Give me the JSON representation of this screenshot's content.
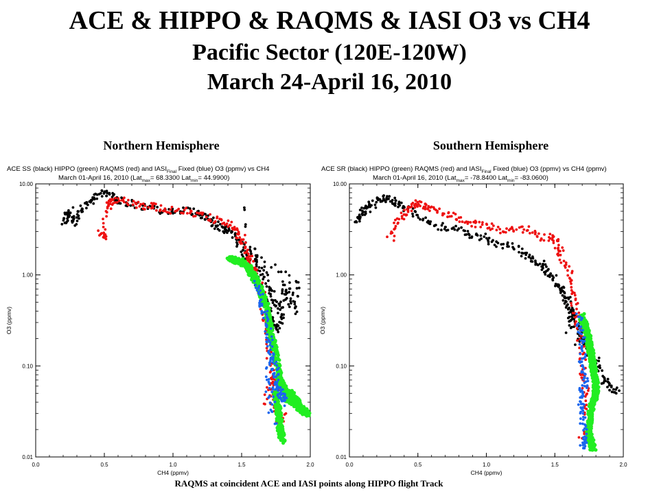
{
  "title": {
    "line1": "ACE & HIPPO & RAQMS & IASI O3 vs CH4",
    "line2": "Pacific Sector (120E-120W)",
    "line3": "March 24-April 16, 2010"
  },
  "footer": "RAQMS at coincident ACE and IASI points along HIPPO flight Track",
  "colors": {
    "ace": "#000000",
    "hippo": "#22ee22",
    "raqms": "#ee1111",
    "iasi": "#1a66ee"
  },
  "chart_data": [
    {
      "type": "scatter",
      "panel_label": "Northern Hemisphere",
      "header_line1_pre": "ACE SS (black) HIPPO (green) RAQMS (red) and IASI",
      "header_line1_sub": "Final",
      "header_line1_post": " Fixed (blue) O3 (ppmv) vs CH4",
      "header_line2_pre": "March 01-April 16, 2010 (Lat",
      "header_sub_max": "max",
      "lat_max_text": "= 68.3300 Lat",
      "header_sub_min": "min",
      "lat_min_text": "= 44.9900)",
      "xlabel": "CH4 (ppmv)",
      "ylabel": "O3 (ppmv)",
      "xlim": [
        0.0,
        2.0
      ],
      "ylim": [
        0.01,
        10.0
      ],
      "ylog": true,
      "xticks": [
        "0.0",
        "0.5",
        "1.0",
        "1.5",
        "2.0"
      ],
      "yticks": [
        "0.01",
        "0.10",
        "1.00",
        "10.00"
      ],
      "series": [
        {
          "name": "ACE SS",
          "color": "black",
          "x": [
            0.2,
            0.22,
            0.25,
            0.28,
            0.3,
            0.35,
            0.4,
            0.45,
            0.5,
            0.55,
            0.6,
            0.7,
            0.8,
            0.9,
            1.0,
            1.1,
            1.2,
            1.25,
            1.3,
            1.35,
            1.4,
            1.45,
            1.5,
            1.52,
            1.55,
            1.58,
            1.6,
            1.62,
            1.65,
            1.68,
            1.7,
            1.72,
            1.75,
            1.78,
            1.8,
            1.82,
            1.85,
            1.88,
            1.9,
            1.6,
            1.7,
            1.8,
            1.55,
            1.65,
            1.75,
            1.5
          ],
          "y": [
            3.8,
            4.3,
            5.1,
            3.6,
            4.6,
            5.6,
            6.6,
            7.6,
            8.1,
            7.1,
            6.6,
            6.1,
            5.6,
            5.1,
            5.1,
            5.1,
            4.6,
            4.3,
            3.6,
            3.3,
            3.1,
            2.6,
            2.1,
            1.6,
            1.3,
            1.1,
            0.9,
            0.8,
            0.6,
            0.5,
            0.4,
            0.3,
            0.25,
            0.3,
            0.5,
            0.8,
            0.6,
            0.4,
            0.9,
            1.6,
            0.7,
            0.35,
            2.1,
            1.2,
            0.45,
            5.6
          ]
        },
        {
          "name": "RAQMS",
          "color": "red",
          "x": [
            0.48,
            0.5,
            0.52,
            0.55,
            0.6,
            0.7,
            0.8,
            0.9,
            1.0,
            1.1,
            1.2,
            1.3,
            1.4,
            1.45,
            1.5,
            1.52,
            1.55,
            1.57,
            1.6,
            1.62,
            1.65,
            1.66,
            1.68,
            1.7,
            1.7,
            1.72,
            1.73,
            1.75,
            1.76,
            1.78,
            1.8,
            1.68,
            1.7
          ],
          "y": [
            3.1,
            2.6,
            5.6,
            6.1,
            6.6,
            6.1,
            5.6,
            5.6,
            5.1,
            5.1,
            4.6,
            4.1,
            3.6,
            3.1,
            2.6,
            2.1,
            1.6,
            1.3,
            1.1,
            0.8,
            0.6,
            0.4,
            0.3,
            0.2,
            0.15,
            0.1,
            0.07,
            0.05,
            0.035,
            0.025,
            0.03,
            0.04,
            0.06
          ]
        },
        {
          "name": "HIPPO",
          "color": "green",
          "x": [
            1.4,
            1.45,
            1.5,
            1.55,
            1.58,
            1.62,
            1.65,
            1.68,
            1.7,
            1.72,
            1.74,
            1.76,
            1.78,
            1.8,
            1.82,
            1.85,
            1.88,
            1.9,
            1.92,
            1.95,
            1.98,
            1.75,
            1.77,
            1.78,
            1.8
          ],
          "y": [
            1.5,
            1.45,
            1.4,
            1.2,
            1.0,
            0.8,
            0.6,
            0.45,
            0.3,
            0.2,
            0.15,
            0.1,
            0.07,
            0.06,
            0.05,
            0.05,
            0.045,
            0.04,
            0.035,
            0.032,
            0.03,
            0.05,
            0.03,
            0.02,
            0.015
          ]
        },
        {
          "name": "IASI Final Fixed",
          "color": "blue",
          "x": [
            1.6,
            1.63,
            1.66,
            1.68,
            1.7,
            1.71,
            1.72,
            1.74,
            1.75,
            1.76,
            1.78,
            1.8,
            1.82,
            1.7,
            1.73,
            1.68
          ],
          "y": [
            0.8,
            0.6,
            0.4,
            0.3,
            0.2,
            0.15,
            0.12,
            0.1,
            0.08,
            0.06,
            0.05,
            0.045,
            0.04,
            0.07,
            0.025,
            0.09
          ]
        }
      ]
    },
    {
      "type": "scatter",
      "panel_label": "Southern Hemisphere",
      "header_line1_pre": "ACE SR (black) HIPPO (green) RAQMS (red) and IASI",
      "header_line1_sub": "Final",
      "header_line1_post": " Fixed (blue) O3 (ppmv) vs CH4 (ppmv)",
      "header_line2_pre": "March 01-April 16, 2010 (Lat",
      "header_sub_max": "max",
      "lat_max_text": "= -78.8400 Lat",
      "header_sub_min": "min",
      "lat_min_text": "= -83.0600)",
      "xlabel": "CH4 (ppmv)",
      "ylabel": "O3 (ppmv)",
      "xlim": [
        0.0,
        2.0
      ],
      "ylim": [
        0.01,
        10.0
      ],
      "ylog": true,
      "xticks": [
        "0.0",
        "0.5",
        "1.0",
        "1.5",
        "2.0"
      ],
      "yticks": [
        "0.01",
        "0.10",
        "1.00",
        "10.00"
      ],
      "series": [
        {
          "name": "ACE SR",
          "color": "black",
          "x": [
            0.05,
            0.08,
            0.1,
            0.15,
            0.2,
            0.25,
            0.3,
            0.35,
            0.4,
            0.5,
            0.6,
            0.7,
            0.8,
            0.9,
            1.0,
            1.1,
            1.2,
            1.3,
            1.35,
            1.4,
            1.45,
            1.5,
            1.55,
            1.58,
            1.6,
            1.62,
            1.65,
            1.68,
            1.7,
            1.72,
            1.75,
            1.8,
            1.85,
            1.9,
            1.95,
            1.6,
            1.62,
            1.55
          ],
          "y": [
            3.6,
            4.6,
            5.1,
            5.6,
            6.6,
            7.1,
            6.6,
            6.1,
            5.6,
            4.6,
            3.6,
            3.3,
            3.1,
            2.6,
            2.6,
            2.1,
            2.1,
            1.6,
            1.4,
            1.3,
            1.1,
            0.9,
            0.7,
            0.55,
            0.45,
            0.35,
            0.3,
            0.25,
            0.2,
            0.18,
            0.15,
            0.12,
            0.07,
            0.06,
            0.05,
            0.25,
            0.4,
            0.8
          ]
        },
        {
          "name": "RAQMS",
          "color": "red",
          "x": [
            0.3,
            0.35,
            0.4,
            0.45,
            0.5,
            0.55,
            0.6,
            0.7,
            0.8,
            0.9,
            1.0,
            1.1,
            1.2,
            1.3,
            1.4,
            1.5,
            1.52,
            1.55,
            1.6,
            1.62,
            1.65,
            1.67,
            1.68,
            1.7,
            1.7,
            1.72,
            1.73,
            1.74,
            1.75,
            1.7
          ],
          "y": [
            2.6,
            3.6,
            4.6,
            5.6,
            6.1,
            5.6,
            5.1,
            4.6,
            4.1,
            3.6,
            3.6,
            3.1,
            3.1,
            3.1,
            2.6,
            2.6,
            2.1,
            1.6,
            1.1,
            0.7,
            0.45,
            0.3,
            0.2,
            0.15,
            0.1,
            0.07,
            0.05,
            0.03,
            0.02,
            0.015
          ]
        },
        {
          "name": "HIPPO",
          "color": "green",
          "x": [
            1.7,
            1.72,
            1.74,
            1.75,
            1.76,
            1.77,
            1.78,
            1.79,
            1.8,
            1.8,
            1.78,
            1.76,
            1.75,
            1.76,
            1.78
          ],
          "y": [
            0.35,
            0.28,
            0.22,
            0.18,
            0.15,
            0.12,
            0.1,
            0.08,
            0.06,
            0.05,
            0.04,
            0.03,
            0.02,
            0.015,
            0.012
          ]
        },
        {
          "name": "IASI Final Fixed",
          "color": "blue",
          "x": [
            1.68,
            1.69,
            1.7,
            1.7,
            1.71,
            1.72,
            1.7,
            1.69,
            1.7,
            1.71,
            1.72,
            1.7
          ],
          "y": [
            0.35,
            0.25,
            0.18,
            0.12,
            0.09,
            0.07,
            0.05,
            0.04,
            0.03,
            0.02,
            0.015,
            0.012
          ]
        }
      ]
    }
  ]
}
